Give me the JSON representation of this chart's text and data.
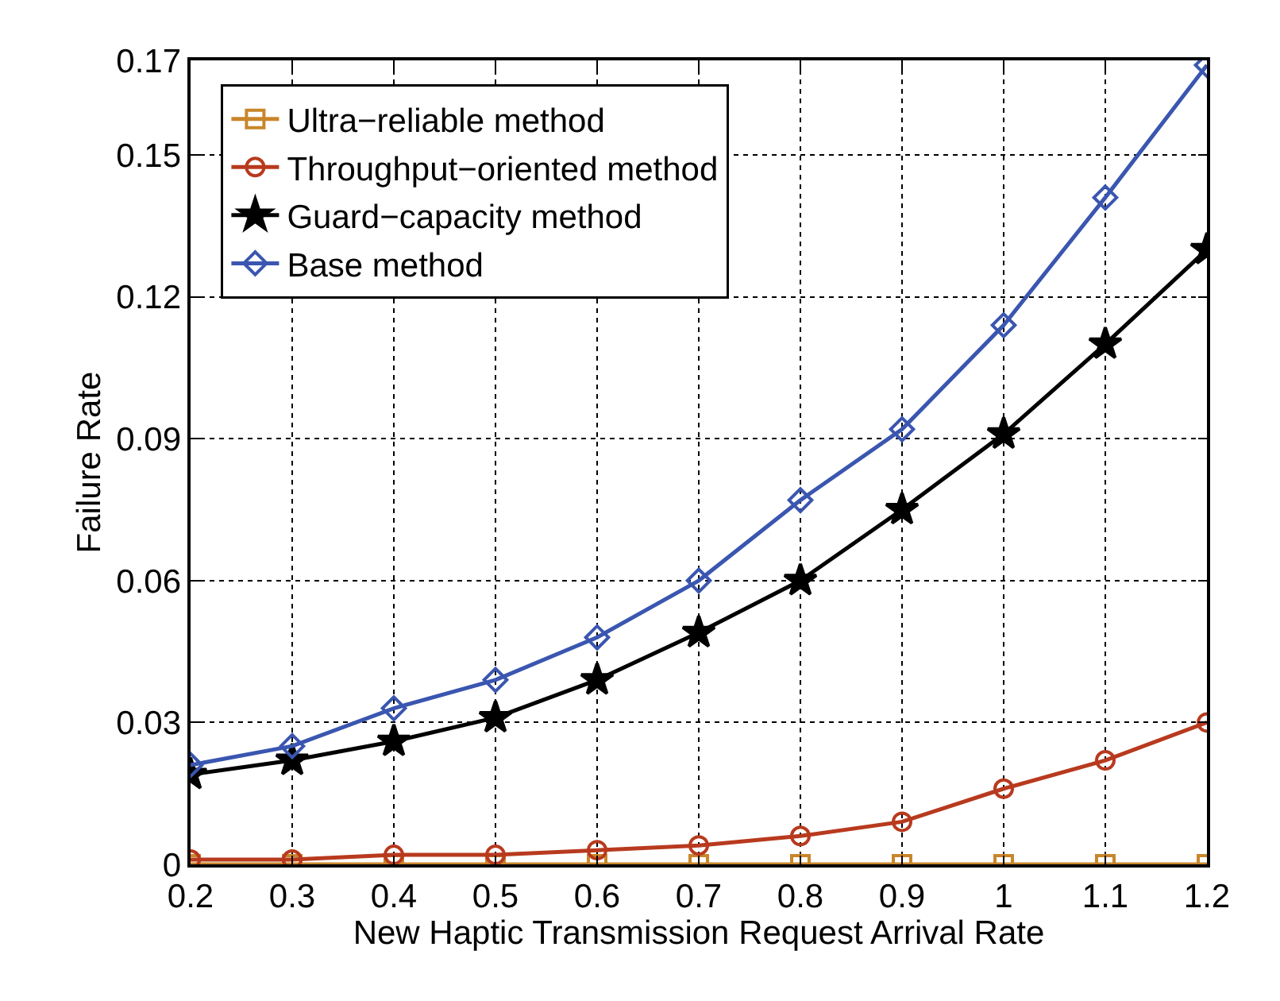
{
  "chart_data": {
    "type": "line",
    "xlabel": "New Haptic Transmission Request Arrival Rate",
    "ylabel": "Failure Rate",
    "x": [
      0.2,
      0.3,
      0.4,
      0.5,
      0.6,
      0.7,
      0.8,
      0.9,
      1,
      1.1,
      1.2
    ],
    "series": [
      {
        "name": "Ultra−reliable method",
        "color": "#c8862a",
        "marker": "square",
        "values": [
          0,
          0,
          0,
          0,
          0,
          0,
          0,
          0,
          0,
          0,
          0
        ]
      },
      {
        "name": "Throughput−oriented method",
        "color": "#b83a1e",
        "marker": "circle",
        "values": [
          0.001,
          0.001,
          0.002,
          0.002,
          0.003,
          0.004,
          0.006,
          0.009,
          0.016,
          0.022,
          0.03
        ]
      },
      {
        "name": "Guard−capacity method",
        "color": "#000000",
        "marker": "star",
        "values": [
          0.019,
          0.022,
          0.026,
          0.031,
          0.039,
          0.049,
          0.06,
          0.075,
          0.091,
          0.11,
          0.13
        ]
      },
      {
        "name": "Base method",
        "color": "#3a56b0",
        "marker": "diamond",
        "values": [
          0.021,
          0.025,
          0.033,
          0.039,
          0.048,
          0.06,
          0.077,
          0.092,
          0.114,
          0.141,
          0.169
        ]
      }
    ],
    "xlim": [
      0.2,
      1.2
    ],
    "xticks": [
      0.2,
      0.3,
      0.4,
      0.5,
      0.6,
      0.7,
      0.8,
      0.9,
      1,
      1.1,
      1.2
    ],
    "ylim": [
      0,
      0.17
    ],
    "yticks": [
      0,
      0.03,
      0.06,
      0.09,
      0.12,
      0.15,
      0.17
    ],
    "grid": true,
    "legend": "top left",
    "line_style": "solid"
  }
}
